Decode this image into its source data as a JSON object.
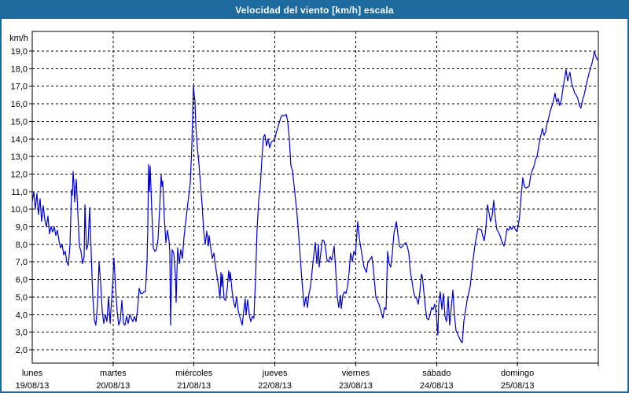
{
  "window": {
    "title": "Velocidad del viento [km/h] escala"
  },
  "colors": {
    "titlebar": "#1d6b9e",
    "window_border": "#1d6b9e",
    "line": "#0000CC",
    "grid": "#000000",
    "text": "#000000",
    "background": "#ffffff"
  },
  "chart_data": {
    "type": "line",
    "title": "Velocidad del viento [km/h] escala",
    "unit_label": "km/h",
    "ylabel": "km/h",
    "xlabel": "",
    "ylim": [
      1.25,
      20.1
    ],
    "xlim_days": [
      0,
      7
    ],
    "grid": "dashed",
    "legend": "none",
    "y_tick_values": [
      19,
      18,
      17,
      16,
      15,
      14,
      13,
      12,
      11,
      10,
      9,
      8,
      7,
      6,
      5,
      4,
      3,
      2
    ],
    "y_tick_labels": [
      "19,0",
      "18,0",
      "17,0",
      "16,0",
      "15,0",
      "14,0",
      "13,0",
      "12,0",
      "11,0",
      "10,0",
      "9,0",
      "8,0",
      "7,0",
      "6,0",
      "5,0",
      "4,0",
      "3,0",
      "2,0"
    ],
    "x_gridline_days": [
      1,
      2,
      3,
      4,
      5,
      6
    ],
    "x_tick_days": [
      1,
      2,
      3,
      4,
      5,
      6,
      7
    ],
    "days": [
      {
        "name": "lunes",
        "date": "19/08/13",
        "t": 0
      },
      {
        "name": "martes",
        "date": "20/08/13",
        "t": 1
      },
      {
        "name": "miércoles",
        "date": "21/08/13",
        "t": 2
      },
      {
        "name": "jueves",
        "date": "22/08/13",
        "t": 3
      },
      {
        "name": "viernes",
        "date": "23/08/13",
        "t": 4
      },
      {
        "name": "sábado",
        "date": "24/08/13",
        "t": 5
      },
      {
        "name": "domingo",
        "date": "25/08/13",
        "t": 6
      }
    ],
    "points": [
      [
        0.0,
        10.4
      ],
      [
        0.019,
        11.0
      ],
      [
        0.039,
        10.0
      ],
      [
        0.058,
        10.9
      ],
      [
        0.078,
        9.7
      ],
      [
        0.097,
        10.6
      ],
      [
        0.117,
        9.3
      ],
      [
        0.136,
        10.2
      ],
      [
        0.156,
        9.4
      ],
      [
        0.175,
        9.0
      ],
      [
        0.194,
        9.6
      ],
      [
        0.214,
        8.6
      ],
      [
        0.233,
        9.0
      ],
      [
        0.253,
        8.7
      ],
      [
        0.272,
        9.0
      ],
      [
        0.292,
        8.5
      ],
      [
        0.311,
        8.8
      ],
      [
        0.331,
        8.2
      ],
      [
        0.35,
        7.8
      ],
      [
        0.369,
        8.0
      ],
      [
        0.389,
        7.4
      ],
      [
        0.408,
        7.6
      ],
      [
        0.428,
        7.0
      ],
      [
        0.447,
        6.8
      ],
      [
        0.467,
        8.0
      ],
      [
        0.476,
        9.5
      ],
      [
        0.486,
        11.1
      ],
      [
        0.496,
        10.8
      ],
      [
        0.506,
        12.15
      ],
      [
        0.515,
        11.5
      ],
      [
        0.525,
        10.4
      ],
      [
        0.544,
        11.7
      ],
      [
        0.564,
        9.8
      ],
      [
        0.583,
        7.9
      ],
      [
        0.603,
        7.6
      ],
      [
        0.622,
        6.9
      ],
      [
        0.642,
        7.3
      ],
      [
        0.651,
        10.25
      ],
      [
        0.671,
        7.7
      ],
      [
        0.69,
        8.0
      ],
      [
        0.71,
        10.1
      ],
      [
        0.729,
        7.5
      ],
      [
        0.749,
        5.0
      ],
      [
        0.768,
        3.7
      ],
      [
        0.787,
        3.4
      ],
      [
        0.807,
        4.6
      ],
      [
        0.826,
        7.0
      ],
      [
        0.846,
        5.8
      ],
      [
        0.865,
        4.2
      ],
      [
        0.885,
        3.5
      ],
      [
        0.904,
        4.0
      ],
      [
        0.924,
        3.6
      ],
      [
        0.943,
        5.0
      ],
      [
        0.963,
        3.5
      ],
      [
        0.972,
        4.2
      ],
      [
        0.992,
        5.5
      ],
      [
        1.011,
        7.2
      ],
      [
        1.031,
        5.5
      ],
      [
        1.05,
        4.2
      ],
      [
        1.069,
        3.4
      ],
      [
        1.089,
        3.7
      ],
      [
        1.108,
        4.8
      ],
      [
        1.128,
        3.5
      ],
      [
        1.147,
        3.4
      ],
      [
        1.167,
        3.9
      ],
      [
        1.186,
        3.5
      ],
      [
        1.206,
        4.0
      ],
      [
        1.225,
        3.8
      ],
      [
        1.244,
        3.6
      ],
      [
        1.264,
        3.9
      ],
      [
        1.283,
        3.6
      ],
      [
        1.303,
        4.3
      ],
      [
        1.322,
        5.5
      ],
      [
        1.342,
        5.2
      ],
      [
        1.361,
        5.2
      ],
      [
        1.381,
        5.3
      ],
      [
        1.4,
        5.3
      ],
      [
        1.419,
        7.0
      ],
      [
        1.429,
        9.0
      ],
      [
        1.439,
        12.55
      ],
      [
        1.449,
        11.0
      ],
      [
        1.458,
        12.45
      ],
      [
        1.478,
        10.0
      ],
      [
        1.497,
        7.8
      ],
      [
        1.517,
        7.6
      ],
      [
        1.536,
        7.7
      ],
      [
        1.556,
        8.3
      ],
      [
        1.575,
        10.0
      ],
      [
        1.594,
        11.95
      ],
      [
        1.604,
        11.3
      ],
      [
        1.614,
        11.6
      ],
      [
        1.633,
        9.5
      ],
      [
        1.653,
        8.1
      ],
      [
        1.672,
        8.8
      ],
      [
        1.692,
        8.2
      ],
      [
        1.701,
        7.5
      ],
      [
        1.711,
        3.4
      ],
      [
        1.73,
        7.7
      ],
      [
        1.75,
        7.5
      ],
      [
        1.769,
        6.3
      ],
      [
        1.779,
        4.7
      ],
      [
        1.798,
        7.8
      ],
      [
        1.818,
        6.9
      ],
      [
        1.837,
        7.7
      ],
      [
        1.857,
        7.2
      ],
      [
        1.876,
        8.4
      ],
      [
        1.896,
        9.2
      ],
      [
        1.915,
        10.0
      ],
      [
        1.934,
        10.7
      ],
      [
        1.954,
        11.5
      ],
      [
        1.973,
        13.5
      ],
      [
        1.993,
        17.0
      ],
      [
        2.003,
        16.5
      ],
      [
        2.012,
        16.2
      ],
      [
        2.022,
        14.8
      ],
      [
        2.042,
        13.5
      ],
      [
        2.061,
        12.6
      ],
      [
        2.08,
        11.5
      ],
      [
        2.1,
        10.3
      ],
      [
        2.119,
        8.8
      ],
      [
        2.139,
        8.0
      ],
      [
        2.158,
        8.75
      ],
      [
        2.178,
        7.9
      ],
      [
        2.187,
        8.5
      ],
      [
        2.207,
        7.8
      ],
      [
        2.226,
        7.2
      ],
      [
        2.246,
        7.5
      ],
      [
        2.265,
        6.8
      ],
      [
        2.285,
        6.2
      ],
      [
        2.304,
        5.6
      ],
      [
        2.323,
        4.9
      ],
      [
        2.333,
        6.4
      ],
      [
        2.343,
        5.6
      ],
      [
        2.353,
        6.3
      ],
      [
        2.372,
        4.9
      ],
      [
        2.391,
        4.8
      ],
      [
        2.411,
        5.5
      ],
      [
        2.43,
        6.5
      ],
      [
        2.44,
        5.9
      ],
      [
        2.45,
        6.4
      ],
      [
        2.469,
        5.4
      ],
      [
        2.489,
        4.75
      ],
      [
        2.508,
        4.4
      ],
      [
        2.528,
        5.0
      ],
      [
        2.547,
        4.2
      ],
      [
        2.566,
        3.9
      ],
      [
        2.596,
        3.4
      ],
      [
        2.615,
        4.2
      ],
      [
        2.634,
        4.9
      ],
      [
        2.644,
        4.0
      ],
      [
        2.664,
        4.85
      ],
      [
        2.683,
        4.0
      ],
      [
        2.702,
        3.6
      ],
      [
        2.722,
        3.9
      ],
      [
        2.741,
        3.8
      ],
      [
        2.761,
        6.0
      ],
      [
        2.78,
        8.8
      ],
      [
        2.8,
        10.5
      ],
      [
        2.819,
        11.3
      ],
      [
        2.839,
        12.8
      ],
      [
        2.858,
        14.1
      ],
      [
        2.877,
        14.25
      ],
      [
        2.897,
        13.6
      ],
      [
        2.916,
        14.0
      ],
      [
        2.936,
        13.5
      ],
      [
        2.955,
        13.8
      ],
      [
        2.975,
        13.9
      ],
      [
        2.994,
        13.9
      ],
      [
        3.014,
        14.3
      ],
      [
        3.033,
        14.6
      ],
      [
        3.053,
        14.9
      ],
      [
        3.072,
        15.2
      ],
      [
        3.091,
        15.35
      ],
      [
        3.111,
        15.3
      ],
      [
        3.13,
        15.35
      ],
      [
        3.14,
        15.4
      ],
      [
        3.159,
        15.0
      ],
      [
        3.179,
        14.0
      ],
      [
        3.198,
        12.5
      ],
      [
        3.218,
        12.2
      ],
      [
        3.237,
        11.4
      ],
      [
        3.257,
        10.5
      ],
      [
        3.276,
        9.6
      ],
      [
        3.295,
        8.5
      ],
      [
        3.315,
        7.2
      ],
      [
        3.334,
        6.0
      ],
      [
        3.354,
        4.9
      ],
      [
        3.364,
        4.45
      ],
      [
        3.383,
        5.0
      ],
      [
        3.403,
        4.4
      ],
      [
        3.422,
        5.2
      ],
      [
        3.441,
        5.6
      ],
      [
        3.461,
        6.5
      ],
      [
        3.48,
        7.3
      ],
      [
        3.5,
        8.1
      ],
      [
        3.519,
        6.9
      ],
      [
        3.539,
        8.0
      ],
      [
        3.548,
        6.7
      ],
      [
        3.568,
        7.5
      ],
      [
        3.587,
        8.25
      ],
      [
        3.607,
        8.2
      ],
      [
        3.626,
        7.8
      ],
      [
        3.645,
        7.1
      ],
      [
        3.665,
        7.0
      ],
      [
        3.684,
        7.3
      ],
      [
        3.704,
        7.1
      ],
      [
        3.733,
        7.9
      ],
      [
        3.753,
        6.5
      ],
      [
        3.772,
        5.0
      ],
      [
        3.791,
        4.4
      ],
      [
        3.811,
        5.1
      ],
      [
        3.821,
        4.35
      ],
      [
        3.84,
        5.1
      ],
      [
        3.86,
        5.3
      ],
      [
        3.879,
        5.2
      ],
      [
        3.899,
        5.6
      ],
      [
        3.918,
        6.4
      ],
      [
        3.937,
        7.5
      ],
      [
        3.957,
        7.0
      ],
      [
        3.976,
        7.6
      ],
      [
        3.996,
        7.4
      ],
      [
        4.025,
        9.3
      ],
      [
        4.045,
        8.3
      ],
      [
        4.064,
        7.8
      ],
      [
        4.083,
        7.2
      ],
      [
        4.103,
        6.7
      ],
      [
        4.132,
        6.4
      ],
      [
        4.151,
        7.0
      ],
      [
        4.171,
        7.1
      ],
      [
        4.2,
        7.3
      ],
      [
        4.22,
        6.5
      ],
      [
        4.249,
        5.0
      ],
      [
        4.268,
        4.8
      ],
      [
        4.287,
        4.6
      ],
      [
        4.307,
        4.3
      ],
      [
        4.336,
        3.8
      ],
      [
        4.356,
        4.4
      ],
      [
        4.375,
        4.3
      ],
      [
        4.394,
        7.6
      ],
      [
        4.414,
        6.9
      ],
      [
        4.433,
        6.7
      ],
      [
        4.453,
        7.5
      ],
      [
        4.472,
        8.6
      ],
      [
        4.501,
        9.3
      ],
      [
        4.521,
        8.6
      ],
      [
        4.54,
        7.9
      ],
      [
        4.56,
        7.8
      ],
      [
        4.579,
        7.9
      ],
      [
        4.598,
        8.0
      ],
      [
        4.618,
        8.1
      ],
      [
        4.637,
        7.9
      ],
      [
        4.657,
        7.5
      ],
      [
        4.676,
        6.4
      ],
      [
        4.696,
        5.9
      ],
      [
        4.715,
        5.3
      ],
      [
        4.734,
        5.0
      ],
      [
        4.754,
        4.9
      ],
      [
        4.773,
        4.6
      ],
      [
        4.793,
        5.3
      ],
      [
        4.812,
        6.3
      ],
      [
        4.822,
        6.2
      ],
      [
        4.841,
        5.4
      ],
      [
        4.861,
        4.4
      ],
      [
        4.88,
        3.8
      ],
      [
        4.9,
        3.7
      ],
      [
        4.919,
        4.0
      ],
      [
        4.938,
        4.4
      ],
      [
        4.958,
        4.3
      ],
      [
        4.977,
        4.6
      ],
      [
        4.997,
        4.0
      ],
      [
        5.007,
        3.3
      ],
      [
        5.016,
        2.85
      ],
      [
        5.026,
        4.6
      ],
      [
        5.045,
        5.3
      ],
      [
        5.065,
        4.3
      ],
      [
        5.084,
        5.2
      ],
      [
        5.104,
        3.9
      ],
      [
        5.123,
        3.6
      ],
      [
        5.143,
        5.0
      ],
      [
        5.162,
        3.4
      ],
      [
        5.181,
        4.4
      ],
      [
        5.201,
        5.4
      ],
      [
        5.22,
        4.0
      ],
      [
        5.24,
        3.1
      ],
      [
        5.259,
        2.9
      ],
      [
        5.279,
        2.7
      ],
      [
        5.298,
        2.5
      ],
      [
        5.317,
        2.4
      ],
      [
        5.337,
        3.6
      ],
      [
        5.356,
        4.2
      ],
      [
        5.376,
        4.8
      ],
      [
        5.395,
        5.2
      ],
      [
        5.415,
        5.6
      ],
      [
        5.434,
        6.4
      ],
      [
        5.453,
        7.2
      ],
      [
        5.473,
        7.9
      ],
      [
        5.492,
        8.4
      ],
      [
        5.512,
        8.9
      ],
      [
        5.531,
        8.85
      ],
      [
        5.551,
        8.85
      ],
      [
        5.57,
        8.5
      ],
      [
        5.589,
        8.2
      ],
      [
        5.609,
        8.9
      ],
      [
        5.628,
        10.25
      ],
      [
        5.648,
        9.8
      ],
      [
        5.667,
        9.3
      ],
      [
        5.687,
        9.6
      ],
      [
        5.706,
        10.5
      ],
      [
        5.725,
        9.5
      ],
      [
        5.745,
        8.85
      ],
      [
        5.764,
        8.7
      ],
      [
        5.784,
        8.5
      ],
      [
        5.803,
        8.2
      ],
      [
        5.833,
        7.9
      ],
      [
        5.852,
        8.3
      ],
      [
        5.871,
        8.9
      ],
      [
        5.891,
        8.8
      ],
      [
        5.91,
        9.0
      ],
      [
        5.93,
        8.85
      ],
      [
        5.949,
        9.05
      ],
      [
        5.968,
        8.9
      ],
      [
        5.988,
        8.75
      ],
      [
        6.007,
        9.0
      ],
      [
        6.027,
        9.6
      ],
      [
        6.046,
        10.8
      ],
      [
        6.066,
        11.8
      ],
      [
        6.085,
        11.3
      ],
      [
        6.105,
        11.2
      ],
      [
        6.124,
        11.25
      ],
      [
        6.143,
        11.3
      ],
      [
        6.163,
        11.9
      ],
      [
        6.182,
        12.2
      ],
      [
        6.202,
        12.4
      ],
      [
        6.221,
        12.8
      ],
      [
        6.241,
        13.0
      ],
      [
        6.26,
        13.5
      ],
      [
        6.28,
        14.0
      ],
      [
        6.309,
        14.6
      ],
      [
        6.328,
        14.2
      ],
      [
        6.348,
        14.4
      ],
      [
        6.367,
        14.9
      ],
      [
        6.386,
        15.2
      ],
      [
        6.406,
        15.6
      ],
      [
        6.435,
        16.0
      ],
      [
        6.464,
        16.6
      ],
      [
        6.484,
        16.1
      ],
      [
        6.503,
        16.3
      ],
      [
        6.522,
        15.9
      ],
      [
        6.542,
        16.2
      ],
      [
        6.561,
        16.8
      ],
      [
        6.581,
        17.4
      ],
      [
        6.6,
        17.95
      ],
      [
        6.62,
        17.3
      ],
      [
        6.649,
        17.8
      ],
      [
        6.668,
        17.2
      ],
      [
        6.688,
        16.9
      ],
      [
        6.707,
        16.6
      ],
      [
        6.727,
        16.5
      ],
      [
        6.746,
        16.3
      ],
      [
        6.765,
        15.9
      ],
      [
        6.785,
        15.75
      ],
      [
        6.804,
        16.2
      ],
      [
        6.824,
        16.5
      ],
      [
        6.843,
        16.9
      ],
      [
        6.862,
        17.3
      ],
      [
        6.882,
        17.7
      ],
      [
        6.901,
        18.0
      ],
      [
        6.921,
        18.3
      ],
      [
        6.94,
        18.7
      ],
      [
        6.95,
        19.0
      ],
      [
        6.969,
        18.7
      ],
      [
        6.989,
        18.5
      ]
    ]
  }
}
